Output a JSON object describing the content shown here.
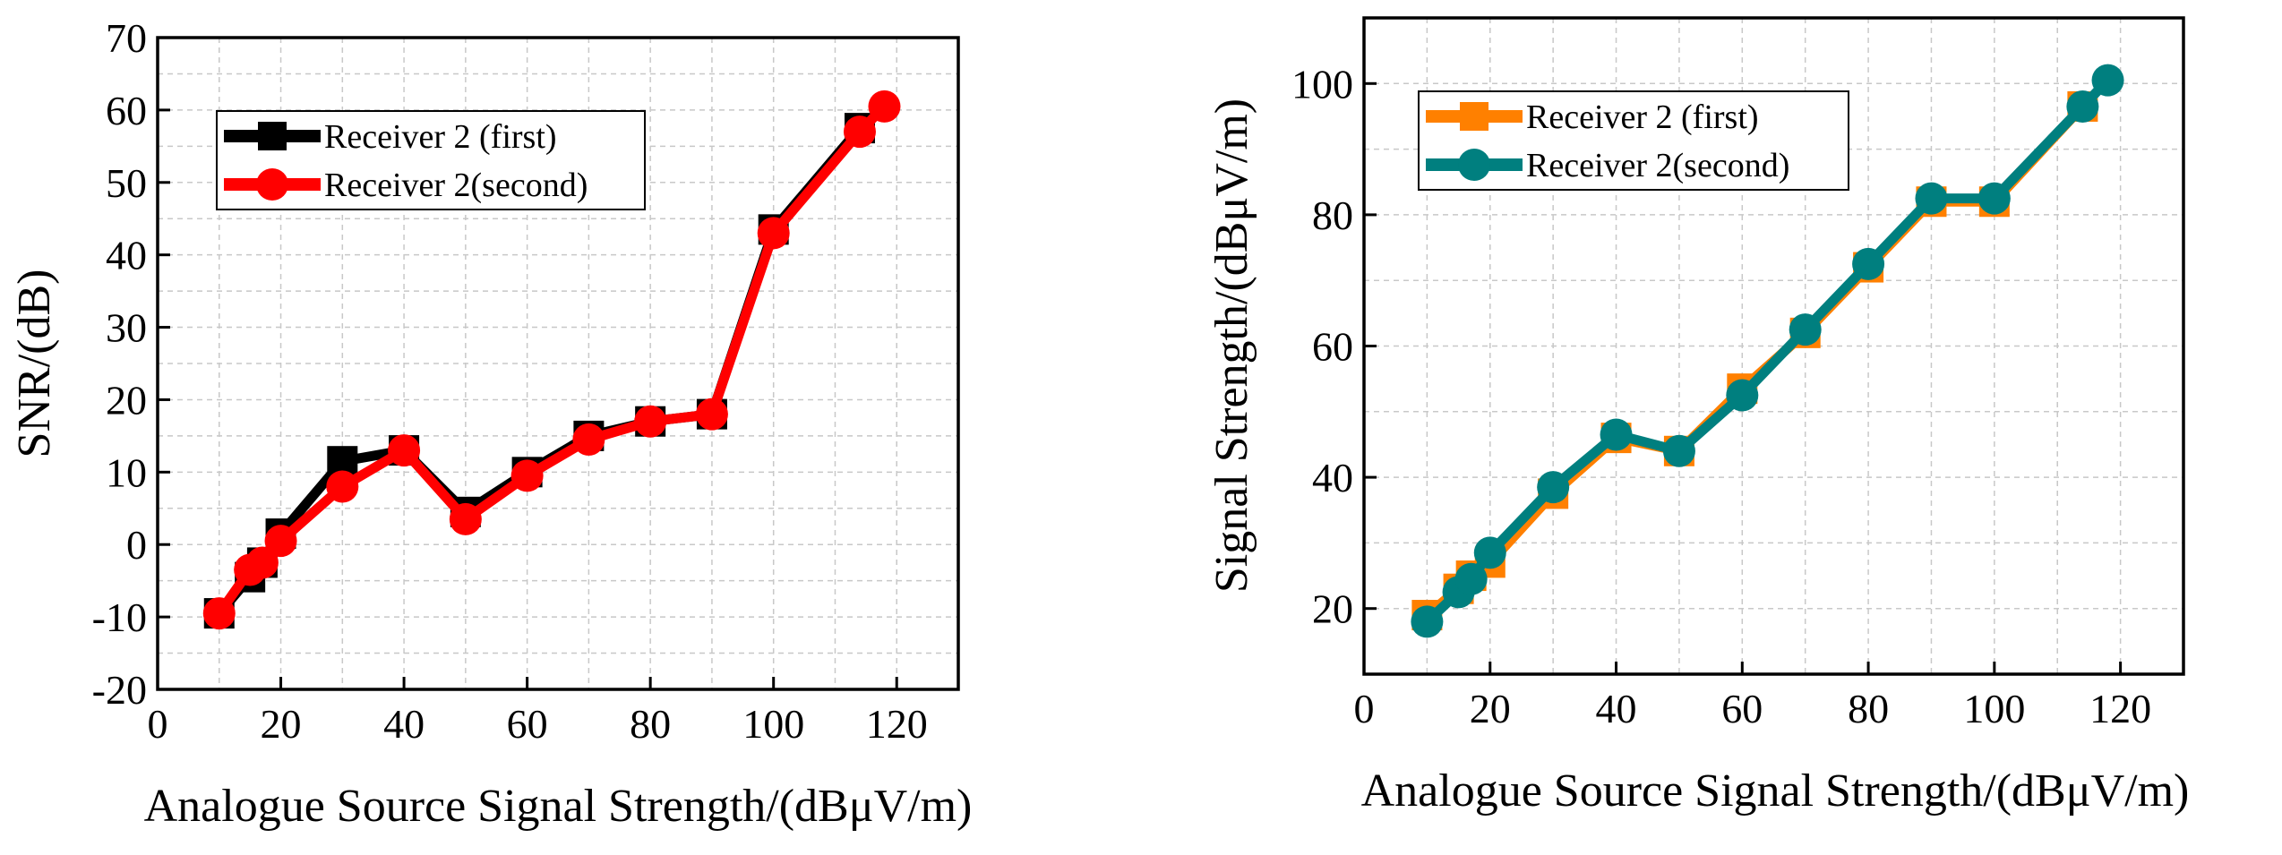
{
  "chart_data": [
    {
      "id": "left",
      "type": "line",
      "title": "",
      "xlabel": "Analogue Source Signal Strength/(dBμV/m)",
      "ylabel": "SNR/(dB)",
      "xlim": [
        0,
        130
      ],
      "ylim": [
        -20,
        70
      ],
      "xticks": [
        0,
        20,
        40,
        60,
        80,
        100,
        120
      ],
      "yticks": [
        -20,
        -10,
        0,
        10,
        20,
        30,
        40,
        50,
        60,
        70
      ],
      "grid": true,
      "legend_position": "top-left",
      "series": [
        {
          "name": "Receiver 2 (first)",
          "color": "#000000",
          "marker": "square",
          "x": [
            10,
            15,
            17,
            20,
            30,
            40,
            50,
            60,
            70,
            80,
            90,
            100,
            114
          ],
          "y": [
            -9.5,
            -4.5,
            -2.5,
            1.5,
            11.5,
            13,
            4.5,
            10,
            15,
            17,
            18,
            43.5,
            57.5
          ]
        },
        {
          "name": "Receiver 2(second)",
          "color": "#ff0000",
          "marker": "circle",
          "x": [
            10,
            15,
            17,
            20,
            30,
            40,
            50,
            60,
            70,
            80,
            90,
            100,
            114,
            118
          ],
          "y": [
            -9.5,
            -3.5,
            -2.5,
            0.5,
            8,
            13,
            3.5,
            9.5,
            14.5,
            17,
            18,
            43,
            57,
            60.5
          ]
        }
      ]
    },
    {
      "id": "right",
      "type": "line",
      "title": "",
      "xlabel": "Analogue Source Signal Strength/(dBμV/m)",
      "ylabel": "Signal Strength/(dBμV/m)",
      "xlim": [
        0,
        130
      ],
      "ylim": [
        10,
        110
      ],
      "xticks": [
        0,
        20,
        40,
        60,
        80,
        100,
        120
      ],
      "yticks": [
        20,
        40,
        60,
        80,
        100
      ],
      "grid": true,
      "legend_position": "top-left",
      "series": [
        {
          "name": "Receiver 2 (first)",
          "color": "#ff8000",
          "marker": "square",
          "x": [
            10,
            15,
            17,
            20,
            30,
            40,
            50,
            60,
            70,
            80,
            90,
            100,
            114
          ],
          "y": [
            19,
            23,
            25,
            27,
            37.5,
            46,
            44,
            53.5,
            62,
            72,
            82,
            82,
            96.5
          ]
        },
        {
          "name": "Receiver 2(second)",
          "color": "#007f7f",
          "marker": "circle",
          "x": [
            10,
            15,
            17,
            20,
            30,
            40,
            50,
            60,
            70,
            80,
            90,
            100,
            114,
            118
          ],
          "y": [
            18,
            22.5,
            24.5,
            28.5,
            38.5,
            46.5,
            44,
            52.5,
            62.5,
            72.5,
            82.5,
            82.5,
            96.5,
            100.5
          ]
        }
      ]
    }
  ]
}
